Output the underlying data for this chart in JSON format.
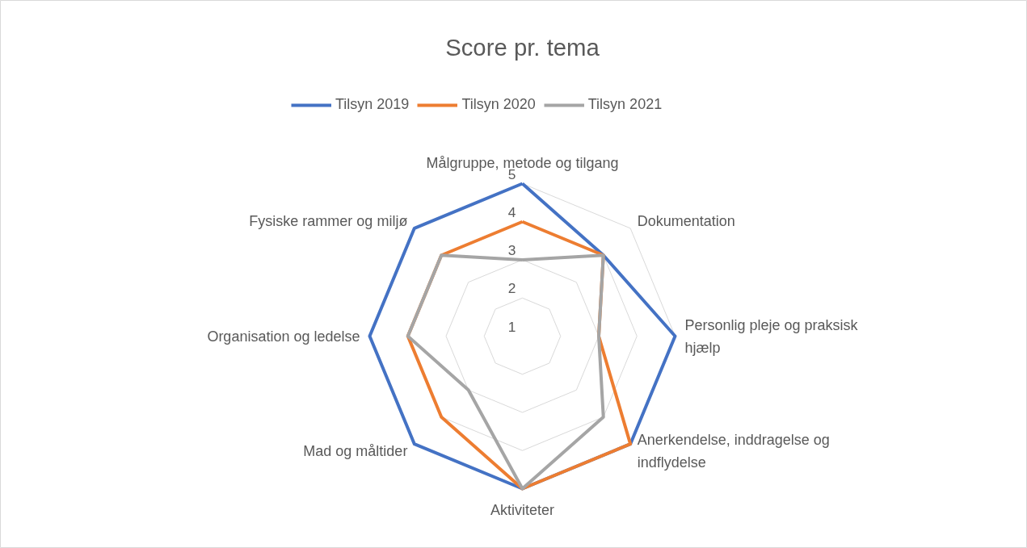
{
  "chart_data": {
    "type": "radar",
    "title": "Score pr. tema",
    "categories": [
      "Målgruppe, metode og tilgang",
      "Dokumentation",
      "Personlig pleje og praksisk hjælp",
      "Anerkendelse, inddragelse og indflydelse",
      "Aktiviteter",
      "Mad og måltider",
      "Organisation og ledelse",
      "Fysiske rammer og miljø"
    ],
    "series": [
      {
        "name": "Tilsyn 2019",
        "color": "#4472c4",
        "values": [
          5,
          4,
          5,
          5,
          5,
          5,
          5,
          5
        ]
      },
      {
        "name": "Tilsyn 2020",
        "color": "#ed7d31",
        "values": [
          4,
          4,
          3,
          5,
          5,
          4,
          4,
          4
        ]
      },
      {
        "name": "Tilsyn 2021",
        "color": "#a5a5a5",
        "values": [
          3,
          4,
          3,
          4,
          5,
          3,
          4,
          4
        ]
      }
    ],
    "ylim": [
      1,
      5
    ],
    "yticks": [
      1,
      2,
      3,
      4,
      5
    ],
    "grid": true,
    "legend": "top",
    "marker": "none"
  }
}
